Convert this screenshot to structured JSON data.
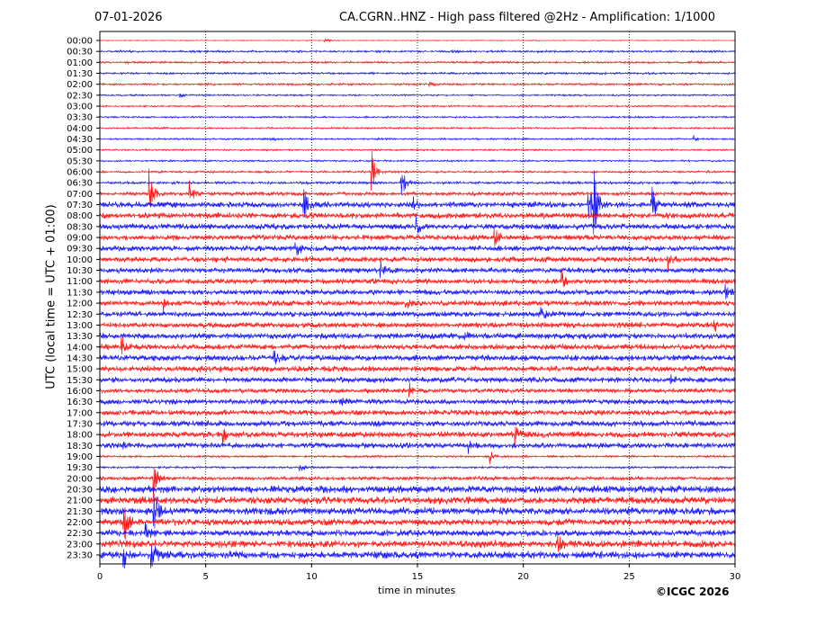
{
  "header": {
    "date": "07-01-2026",
    "title": "CA.CGRN..HNZ - High pass filtered @2Hz - Amplification: 1/1000"
  },
  "footer": {
    "copyright": "©ICGC 2026"
  },
  "chart_data": {
    "type": "line",
    "title": "CA.CGRN..HNZ - High pass filtered @2Hz - Amplification: 1/1000",
    "xlabel": "time in minutes",
    "ylabel": "UTC (local time = UTC + 01:00)",
    "xlim": [
      0,
      30
    ],
    "xticks": [
      "0",
      "5",
      "10",
      "15",
      "20",
      "25",
      "30"
    ],
    "grid": "vertical dotted at 5-minute intervals",
    "colors": {
      "even_rows": "#ff0000",
      "odd_rows": "#0000ff"
    },
    "rows": [
      "00:00",
      "00:30",
      "01:00",
      "01:30",
      "02:00",
      "02:30",
      "03:00",
      "03:30",
      "04:00",
      "04:30",
      "05:00",
      "05:30",
      "06:00",
      "06:30",
      "07:00",
      "07:30",
      "08:00",
      "08:30",
      "09:00",
      "09:30",
      "10:00",
      "10:30",
      "11:00",
      "11:30",
      "12:00",
      "12:30",
      "13:00",
      "13:30",
      "14:00",
      "14:30",
      "15:00",
      "15:30",
      "16:00",
      "16:30",
      "17:00",
      "17:30",
      "18:00",
      "18:30",
      "19:00",
      "19:30",
      "20:00",
      "20:30",
      "21:00",
      "21:30",
      "22:00",
      "22:30",
      "23:00",
      "23:30"
    ],
    "noise_level": [
      0.05,
      0.12,
      0.12,
      0.12,
      0.12,
      0.1,
      0.1,
      0.1,
      0.1,
      0.1,
      0.1,
      0.1,
      0.12,
      0.14,
      0.2,
      0.32,
      0.32,
      0.32,
      0.3,
      0.3,
      0.3,
      0.3,
      0.28,
      0.3,
      0.3,
      0.3,
      0.3,
      0.32,
      0.32,
      0.32,
      0.32,
      0.3,
      0.25,
      0.28,
      0.3,
      0.33,
      0.33,
      0.3,
      0.12,
      0.12,
      0.2,
      0.4,
      0.4,
      0.4,
      0.35,
      0.35,
      0.4,
      0.4
    ],
    "events": [
      {
        "row": 0,
        "minute": 10.6,
        "amp": 0.2
      },
      {
        "row": 1,
        "minute": 16.6,
        "amp": 0.3
      },
      {
        "row": 4,
        "minute": 15.5,
        "amp": 0.3
      },
      {
        "row": 5,
        "minute": 3.7,
        "amp": 0.35
      },
      {
        "row": 9,
        "minute": 8.0,
        "amp": 0.3
      },
      {
        "row": 9,
        "minute": 28.0,
        "amp": 0.4
      },
      {
        "row": 12,
        "minute": 12.8,
        "amp": 3.0
      },
      {
        "row": 13,
        "minute": 14.2,
        "amp": 2.5
      },
      {
        "row": 14,
        "minute": 2.3,
        "amp": 2.5
      },
      {
        "row": 14,
        "minute": 4.2,
        "amp": 1.5
      },
      {
        "row": 15,
        "minute": 9.6,
        "amp": 1.5
      },
      {
        "row": 15,
        "minute": 14.8,
        "amp": 1.2
      },
      {
        "row": 15,
        "minute": 23.0,
        "amp": 4.0
      },
      {
        "row": 15,
        "minute": 23.3,
        "amp": 3.5
      },
      {
        "row": 15,
        "minute": 26.0,
        "amp": 3.0
      },
      {
        "row": 17,
        "minute": 14.9,
        "amp": 1.0
      },
      {
        "row": 18,
        "minute": 18.6,
        "amp": 1.0
      },
      {
        "row": 19,
        "minute": 9.2,
        "amp": 1.0
      },
      {
        "row": 20,
        "minute": 26.8,
        "amp": 1.5
      },
      {
        "row": 21,
        "minute": 13.2,
        "amp": 1.2
      },
      {
        "row": 22,
        "minute": 21.8,
        "amp": 1.0
      },
      {
        "row": 23,
        "minute": 29.5,
        "amp": 0.8
      },
      {
        "row": 24,
        "minute": 3.0,
        "amp": 0.8
      },
      {
        "row": 24,
        "minute": 14.4,
        "amp": 0.7
      },
      {
        "row": 25,
        "minute": 20.8,
        "amp": 0.6
      },
      {
        "row": 26,
        "minute": 29.0,
        "amp": 0.7
      },
      {
        "row": 27,
        "minute": 17.2,
        "amp": 0.6
      },
      {
        "row": 28,
        "minute": 1.0,
        "amp": 1.0
      },
      {
        "row": 29,
        "minute": 8.2,
        "amp": 0.8
      },
      {
        "row": 31,
        "minute": 26.9,
        "amp": 0.6
      },
      {
        "row": 32,
        "minute": 14.6,
        "amp": 0.7
      },
      {
        "row": 33,
        "minute": 11.3,
        "amp": 0.6
      },
      {
        "row": 36,
        "minute": 5.8,
        "amp": 0.8
      },
      {
        "row": 36,
        "minute": 19.6,
        "amp": 0.8
      },
      {
        "row": 37,
        "minute": 1.0,
        "amp": 0.6
      },
      {
        "row": 37,
        "minute": 17.4,
        "amp": 0.7
      },
      {
        "row": 38,
        "minute": 18.4,
        "amp": 0.7
      },
      {
        "row": 39,
        "minute": 9.4,
        "amp": 0.6
      },
      {
        "row": 40,
        "minute": 2.5,
        "amp": 2.0
      },
      {
        "row": 43,
        "minute": 2.5,
        "amp": 3.0
      },
      {
        "row": 44,
        "minute": 1.1,
        "amp": 3.0
      },
      {
        "row": 45,
        "minute": 2.1,
        "amp": 1.2
      },
      {
        "row": 46,
        "minute": 21.6,
        "amp": 0.8
      },
      {
        "row": 47,
        "minute": 2.4,
        "amp": 2.0
      },
      {
        "row": 47,
        "minute": 1.1,
        "amp": 1.5
      }
    ]
  }
}
